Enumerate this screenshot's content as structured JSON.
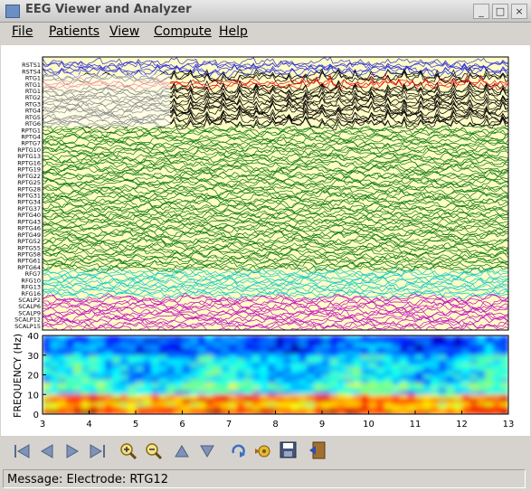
{
  "window": {
    "title": "EEG Viewer and Analyzer",
    "minimize_glyph": "_",
    "maximize_glyph": "□",
    "close_glyph": "×"
  },
  "menu": [
    {
      "label": "File"
    },
    {
      "label": "Patients"
    },
    {
      "label": "View"
    },
    {
      "label": "Compute"
    },
    {
      "label": "Help"
    }
  ],
  "colors": {
    "background": "#fffcc6",
    "blue": "#3030d8",
    "black": "#000000",
    "red": "#e01010",
    "green": "#107a10",
    "cyan": "#10c8c8",
    "magenta": "#c010c0"
  },
  "channels": [
    {
      "name": "RSTS1",
      "color": "blue"
    },
    {
      "name": "RSTS4",
      "color": "blue"
    },
    {
      "name": "RTG1",
      "color": "black"
    },
    {
      "name": "RTG1",
      "color": "red"
    },
    {
      "name": "RTG1",
      "color": "black"
    },
    {
      "name": "RTG2",
      "color": "black"
    },
    {
      "name": "RTG3",
      "color": "black"
    },
    {
      "name": "RTG4",
      "color": "black"
    },
    {
      "name": "RTG5",
      "color": "black"
    },
    {
      "name": "RTG6",
      "color": "black"
    },
    {
      "name": "RPTG1",
      "color": "green"
    },
    {
      "name": "RPTG4",
      "color": "green"
    },
    {
      "name": "RPTG7",
      "color": "green"
    },
    {
      "name": "RPTG10",
      "color": "green"
    },
    {
      "name": "RPTG13",
      "color": "green"
    },
    {
      "name": "RPTG16",
      "color": "green"
    },
    {
      "name": "RPTG19",
      "color": "green"
    },
    {
      "name": "RPTG22",
      "color": "green"
    },
    {
      "name": "RPTG25",
      "color": "green"
    },
    {
      "name": "RPTG28",
      "color": "green"
    },
    {
      "name": "RPTG31",
      "color": "green"
    },
    {
      "name": "RPTG34",
      "color": "green"
    },
    {
      "name": "RPTG37",
      "color": "green"
    },
    {
      "name": "RPTG40",
      "color": "green"
    },
    {
      "name": "RPTG43",
      "color": "green"
    },
    {
      "name": "RPTG46",
      "color": "green"
    },
    {
      "name": "RPTG49",
      "color": "green"
    },
    {
      "name": "RPTG52",
      "color": "green"
    },
    {
      "name": "RPTG55",
      "color": "green"
    },
    {
      "name": "RPTG58",
      "color": "green"
    },
    {
      "name": "RPTG61",
      "color": "green"
    },
    {
      "name": "RPTG64",
      "color": "green"
    },
    {
      "name": "RFG7",
      "color": "cyan"
    },
    {
      "name": "RFG10",
      "color": "cyan"
    },
    {
      "name": "RFG13",
      "color": "cyan"
    },
    {
      "name": "RFG16",
      "color": "cyan"
    },
    {
      "name": "SCALP2",
      "color": "magenta"
    },
    {
      "name": "SCALP6",
      "color": "magenta"
    },
    {
      "name": "SCALP9",
      "color": "magenta"
    },
    {
      "name": "SCALP12",
      "color": "magenta"
    },
    {
      "name": "SCALP15",
      "color": "magenta"
    }
  ],
  "spectrogram": {
    "ylabel": "FREQUENCY (Hz)",
    "yticks": [
      "0",
      "10",
      "20",
      "30",
      "40"
    ],
    "ylim": [
      0,
      40
    ]
  },
  "x_axis": {
    "ticks": [
      "3",
      "4",
      "5",
      "6",
      "7",
      "8",
      "9",
      "10",
      "11",
      "12",
      "13"
    ],
    "xlim": [
      3,
      13
    ]
  },
  "toolbar": [
    {
      "name": "first-icon"
    },
    {
      "name": "prev-icon"
    },
    {
      "name": "next-icon"
    },
    {
      "name": "last-icon"
    },
    {
      "name": "zoom-in-icon"
    },
    {
      "name": "zoom-out-icon"
    },
    {
      "name": "up-icon"
    },
    {
      "name": "down-icon"
    },
    {
      "name": "refresh-icon"
    },
    {
      "name": "settings-icon"
    },
    {
      "name": "save-icon"
    },
    {
      "name": "exit-icon"
    }
  ],
  "status": {
    "text": "Message: Electrode: RTG12"
  }
}
